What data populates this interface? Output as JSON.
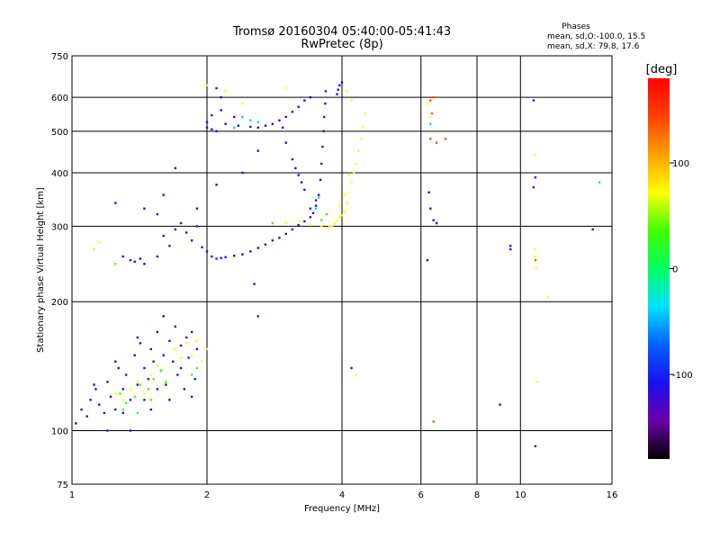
{
  "header": {
    "title_line1": "Tromsø 20160304 05:40:00-05:41:43",
    "title_line2": "RwPretec (8p)"
  },
  "stats": {
    "heading": "Phases",
    "line_o": "mean, sd,O:-100.0, 15.5",
    "line_x": "mean, sd,X:  79.8, 17.6"
  },
  "chart_data": {
    "type": "scatter",
    "xlabel": "Frequency [MHz]",
    "ylabel": "Stationary phase Virtual Height [km]",
    "x_scale": "log",
    "y_scale": "log",
    "xlim": [
      1,
      16
    ],
    "ylim": [
      75,
      750
    ],
    "x_ticks": [
      {
        "value": 1,
        "label": "1"
      },
      {
        "value": 2,
        "label": "2"
      },
      {
        "value": 4,
        "label": "4"
      },
      {
        "value": 6,
        "label": "6"
      },
      {
        "value": 8,
        "label": "8"
      },
      {
        "value": 10,
        "label": "10"
      },
      {
        "value": 16,
        "label": "16"
      }
    ],
    "x_grid": [
      2,
      4,
      6,
      8,
      10
    ],
    "y_ticks": [
      {
        "value": 75,
        "label": "75"
      },
      {
        "value": 100,
        "label": "100"
      },
      {
        "value": 200,
        "label": "200"
      },
      {
        "value": 300,
        "label": "300"
      },
      {
        "value": 400,
        "label": "400"
      },
      {
        "value": 500,
        "label": "500"
      },
      {
        "value": 600,
        "label": "600"
      },
      {
        "value": 750,
        "label": "750"
      }
    ],
    "y_grid": [
      100,
      200,
      300,
      400,
      500,
      600
    ],
    "grid": true,
    "colorbar": {
      "label": "[deg]",
      "range": [
        -180,
        180
      ],
      "ticks": [
        {
          "value": 100,
          "label": "100"
        },
        {
          "value": 0,
          "label": "0"
        },
        {
          "value": -100,
          "label": "-100"
        }
      ],
      "colors": [
        "#000000",
        "#6a00a8",
        "#1a10f0",
        "#0060ff",
        "#00e0ff",
        "#00ff60",
        "#40ff00",
        "#ffff00",
        "#ffa000",
        "#ff4000",
        "#ff0000"
      ]
    },
    "series": [
      {
        "color": "#1a10f0",
        "points": [
          [
            1.02,
            104
          ],
          [
            1.05,
            112
          ],
          [
            1.08,
            108
          ],
          [
            1.1,
            118
          ],
          [
            1.13,
            125
          ],
          [
            1.15,
            115
          ],
          [
            1.18,
            110
          ],
          [
            1.2,
            130
          ],
          [
            1.22,
            120
          ],
          [
            1.25,
            112
          ],
          [
            1.27,
            140
          ],
          [
            1.3,
            125
          ],
          [
            1.32,
            135
          ],
          [
            1.35,
            118
          ],
          [
            1.38,
            150
          ],
          [
            1.4,
            128
          ],
          [
            1.42,
            160
          ],
          [
            1.45,
            140
          ],
          [
            1.48,
            132
          ],
          [
            1.5,
            155
          ],
          [
            1.52,
            145
          ],
          [
            1.55,
            170
          ],
          [
            1.58,
            138
          ],
          [
            1.6,
            150
          ],
          [
            1.62,
            128
          ],
          [
            1.65,
            162
          ],
          [
            1.68,
            145
          ],
          [
            1.7,
            175
          ],
          [
            1.72,
            135
          ],
          [
            1.75,
            158
          ],
          [
            1.78,
            125
          ],
          [
            1.8,
            165
          ],
          [
            1.82,
            148
          ],
          [
            1.85,
            170
          ],
          [
            1.88,
            132
          ],
          [
            1.9,
            155
          ],
          [
            1.12,
            128
          ],
          [
            1.25,
            145
          ],
          [
            1.3,
            110
          ],
          [
            1.45,
            118
          ],
          [
            1.55,
            125
          ],
          [
            1.65,
            118
          ],
          [
            1.75,
            140
          ],
          [
            1.85,
            120
          ],
          [
            1.6,
            185
          ],
          [
            1.4,
            165
          ],
          [
            1.2,
            100
          ],
          [
            1.35,
            100
          ],
          [
            1.5,
            112
          ],
          [
            1.35,
            250
          ],
          [
            1.38,
            248
          ],
          [
            1.42,
            252
          ],
          [
            1.3,
            255
          ],
          [
            1.45,
            245
          ],
          [
            1.55,
            255
          ],
          [
            1.6,
            285
          ],
          [
            1.65,
            270
          ],
          [
            1.7,
            295
          ],
          [
            1.75,
            305
          ],
          [
            1.8,
            290
          ],
          [
            1.85,
            278
          ],
          [
            1.9,
            300
          ],
          [
            1.95,
            268
          ],
          [
            2.0,
            262
          ],
          [
            2.05,
            255
          ],
          [
            2.1,
            252
          ],
          [
            2.15,
            253
          ],
          [
            2.2,
            254
          ],
          [
            2.3,
            256
          ],
          [
            2.4,
            258
          ],
          [
            2.5,
            262
          ],
          [
            2.6,
            267
          ],
          [
            2.7,
            272
          ],
          [
            2.8,
            278
          ],
          [
            2.9,
            282
          ],
          [
            3.0,
            288
          ],
          [
            3.1,
            295
          ],
          [
            3.2,
            302
          ],
          [
            3.3,
            308
          ],
          [
            3.4,
            315
          ],
          [
            3.45,
            322
          ],
          [
            3.5,
            335
          ],
          [
            3.55,
            355
          ],
          [
            3.58,
            385
          ],
          [
            3.6,
            420
          ],
          [
            3.62,
            460
          ],
          [
            3.64,
            500
          ],
          [
            3.65,
            540
          ],
          [
            3.67,
            580
          ],
          [
            3.68,
            620
          ],
          [
            3.5,
            345
          ],
          [
            3.3,
            365
          ],
          [
            3.2,
            395
          ],
          [
            3.1,
            430
          ],
          [
            3.0,
            470
          ],
          [
            2.95,
            510
          ],
          [
            3.4,
            330
          ],
          [
            3.25,
            380
          ],
          [
            3.15,
            410
          ],
          [
            2.0,
            510
          ],
          [
            2.05,
            505
          ],
          [
            2.1,
            500
          ],
          [
            2.2,
            520
          ],
          [
            2.35,
            515
          ],
          [
            2.5,
            512
          ],
          [
            2.6,
            510
          ],
          [
            2.7,
            515
          ],
          [
            2.8,
            520
          ],
          [
            2.9,
            530
          ],
          [
            3.0,
            540
          ],
          [
            3.1,
            555
          ],
          [
            3.2,
            570
          ],
          [
            3.3,
            590
          ],
          [
            3.4,
            600
          ],
          [
            2.05,
            545
          ],
          [
            2.15,
            560
          ],
          [
            2.0,
            525
          ],
          [
            2.3,
            540
          ],
          [
            3.9,
            610
          ],
          [
            3.95,
            640
          ],
          [
            4.0,
            650
          ],
          [
            3.92,
            625
          ],
          [
            2.1,
            630
          ],
          [
            2.15,
            600
          ],
          [
            1.7,
            410
          ],
          [
            2.4,
            400
          ],
          [
            2.6,
            450
          ],
          [
            1.6,
            355
          ],
          [
            1.55,
            320
          ],
          [
            2.55,
            220
          ],
          [
            2.6,
            185
          ],
          [
            2.1,
            375
          ],
          [
            1.9,
            330
          ],
          [
            1.45,
            330
          ],
          [
            1.25,
            340
          ],
          [
            4.2,
            140
          ],
          [
            6.2,
            250
          ],
          [
            6.25,
            360
          ],
          [
            6.3,
            330
          ],
          [
            6.4,
            310
          ],
          [
            6.5,
            305
          ],
          [
            9.0,
            115
          ],
          [
            9.5,
            270
          ],
          [
            10.7,
            590
          ],
          [
            10.8,
            390
          ],
          [
            10.7,
            370
          ],
          [
            10.8,
            92
          ],
          [
            14.5,
            295
          ],
          [
            9.5,
            265
          ]
        ]
      },
      {
        "color": "#ffff00",
        "points": [
          [
            3.75,
            300
          ],
          [
            3.85,
            305
          ],
          [
            3.9,
            310
          ],
          [
            3.95,
            315
          ],
          [
            4.0,
            318
          ],
          [
            4.05,
            325
          ],
          [
            4.1,
            340
          ],
          [
            4.15,
            360
          ],
          [
            4.2,
            380
          ],
          [
            4.25,
            400
          ],
          [
            4.3,
            420
          ],
          [
            4.35,
            450
          ],
          [
            4.4,
            480
          ],
          [
            4.45,
            510
          ],
          [
            4.5,
            550
          ],
          [
            4.15,
            395
          ],
          [
            4.05,
            355
          ],
          [
            3.95,
            335
          ],
          [
            3.8,
            300
          ],
          [
            3.6,
            300
          ],
          [
            3.4,
            302
          ],
          [
            3.2,
            308
          ],
          [
            3.0,
            305
          ],
          [
            4.1,
            620
          ],
          [
            4.2,
            590
          ],
          [
            1.35,
            125
          ],
          [
            1.4,
            130
          ],
          [
            1.45,
            122
          ],
          [
            1.5,
            135
          ],
          [
            1.55,
            142
          ],
          [
            1.6,
            128
          ],
          [
            1.7,
            155
          ],
          [
            1.75,
            148
          ],
          [
            1.8,
            160
          ],
          [
            1.85,
            150
          ],
          [
            1.9,
            162
          ],
          [
            1.95,
            145
          ],
          [
            1.25,
            122
          ],
          [
            1.3,
            118
          ],
          [
            1.12,
            265
          ],
          [
            1.15,
            275
          ],
          [
            2.0,
            640
          ],
          [
            2.2,
            620
          ],
          [
            2.4,
            580
          ],
          [
            3.0,
            630
          ],
          [
            2.0,
            155
          ],
          [
            6.2,
            580
          ],
          [
            6.3,
            540
          ],
          [
            10.8,
            440
          ],
          [
            10.8,
            255
          ],
          [
            10.8,
            265
          ],
          [
            10.85,
            240
          ],
          [
            10.9,
            130
          ],
          [
            11.5,
            205
          ],
          [
            4.3,
            135
          ]
        ]
      },
      {
        "color": "#40ff00",
        "points": [
          [
            1.28,
            122
          ],
          [
            1.32,
            116
          ],
          [
            1.38,
            120
          ],
          [
            1.42,
            128
          ],
          [
            1.48,
            125
          ],
          [
            1.52,
            132
          ],
          [
            1.58,
            138
          ],
          [
            1.62,
            130
          ],
          [
            1.3,
            112
          ],
          [
            1.4,
            110
          ],
          [
            1.5,
            118
          ],
          [
            1.85,
            135
          ],
          [
            1.9,
            140
          ],
          [
            3.6,
            310
          ],
          [
            3.7,
            320
          ],
          [
            2.8,
            305
          ],
          [
            1.25,
            245
          ]
        ]
      },
      {
        "color": "#00d8ff",
        "points": [
          [
            2.4,
            540
          ],
          [
            2.5,
            530
          ],
          [
            2.6,
            525
          ],
          [
            2.3,
            510
          ],
          [
            3.5,
            330
          ],
          [
            3.55,
            350
          ],
          [
            6.3,
            520
          ],
          [
            15.0,
            380
          ]
        ]
      },
      {
        "color": "#ff5000",
        "points": [
          [
            6.4,
            600
          ],
          [
            6.35,
            550
          ],
          [
            6.8,
            480
          ],
          [
            6.3,
            480
          ],
          [
            6.5,
            470
          ],
          [
            6.4,
            105
          ],
          [
            10.8,
            250
          ],
          [
            6.3,
            590
          ]
        ]
      }
    ]
  }
}
